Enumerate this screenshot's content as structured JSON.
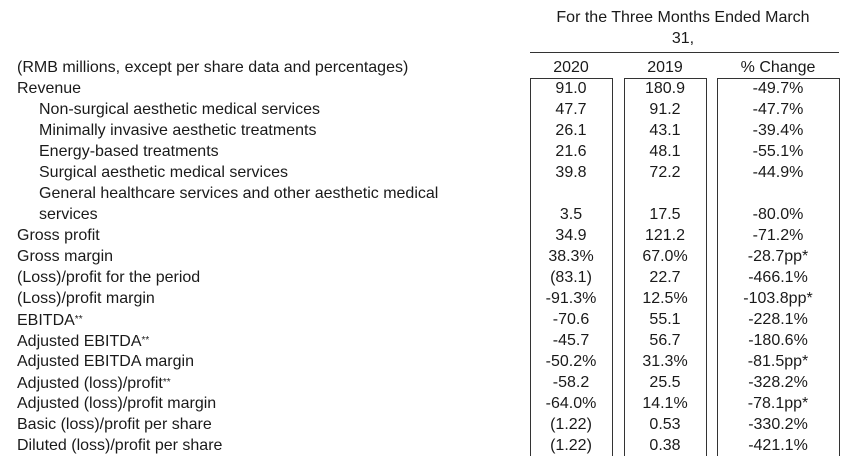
{
  "header": {
    "period_line1": "For the Three Months Ended March",
    "period_line2": "31,",
    "units_label": "(RMB millions, except per share data and percentages)",
    "col_2020": "2020",
    "col_2019": "2019",
    "col_change": "% Change"
  },
  "rows": [
    {
      "label": "Revenue",
      "v2020": "91.0",
      "v2019": "180.9",
      "change": "-49.7%"
    },
    {
      "label": "Non-surgical aesthetic medical services",
      "v2020": "47.7",
      "v2019": "91.2",
      "change": "-47.7%"
    },
    {
      "label": "Minimally invasive aesthetic treatments",
      "v2020": "26.1",
      "v2019": "43.1",
      "change": "-39.4%"
    },
    {
      "label": "Energy-based treatments",
      "v2020": "21.6",
      "v2019": "48.1",
      "change": "-55.1%"
    },
    {
      "label": "Surgical aesthetic medical services",
      "v2020": "39.8",
      "v2019": "72.2",
      "change": "-44.9%"
    },
    {
      "label": "General healthcare services and other aesthetic medical services",
      "v2020": "3.5",
      "v2019": "17.5",
      "change": "-80.0%"
    },
    {
      "label": "Gross profit",
      "v2020": "34.9",
      "v2019": "121.2",
      "change": "-71.2%"
    },
    {
      "label": "Gross margin",
      "v2020": "38.3%",
      "v2019": "67.0%",
      "change": "-28.7pp*"
    },
    {
      "label": "(Loss)/profit for the period",
      "v2020": "(83.1)",
      "v2019": "22.7",
      "change": "-466.1%"
    },
    {
      "label": "(Loss)/profit margin",
      "v2020": "-91.3%",
      "v2019": "12.5%",
      "change": "-103.8pp*"
    },
    {
      "label": "EBITDA",
      "sup": "**",
      "v2020": "-70.6",
      "v2019": "55.1",
      "change": "-228.1%"
    },
    {
      "label": "Adjusted EBITDA",
      "sup": "**",
      "v2020": "-45.7",
      "v2019": "56.7",
      "change": "-180.6%"
    },
    {
      "label": "Adjusted EBITDA margin",
      "v2020": "-50.2%",
      "v2019": "31.3%",
      "change": "-81.5pp*"
    },
    {
      "label": "Adjusted (loss)/profit",
      "sup": "**",
      "v2020": "-58.2",
      "v2019": "25.5",
      "change": "-328.2%"
    },
    {
      "label": "Adjusted (loss)/profit margin",
      "v2020": "-64.0%",
      "v2019": "14.1%",
      "change": "-78.1pp*"
    },
    {
      "label": "Basic (loss)/profit per share",
      "v2020": "(1.22)",
      "v2019": "0.53",
      "change": "-330.2%"
    },
    {
      "label": "Diluted (loss)/profit per share",
      "v2020": "(1.22)",
      "v2019": "0.38",
      "change": "-421.1%"
    }
  ]
}
